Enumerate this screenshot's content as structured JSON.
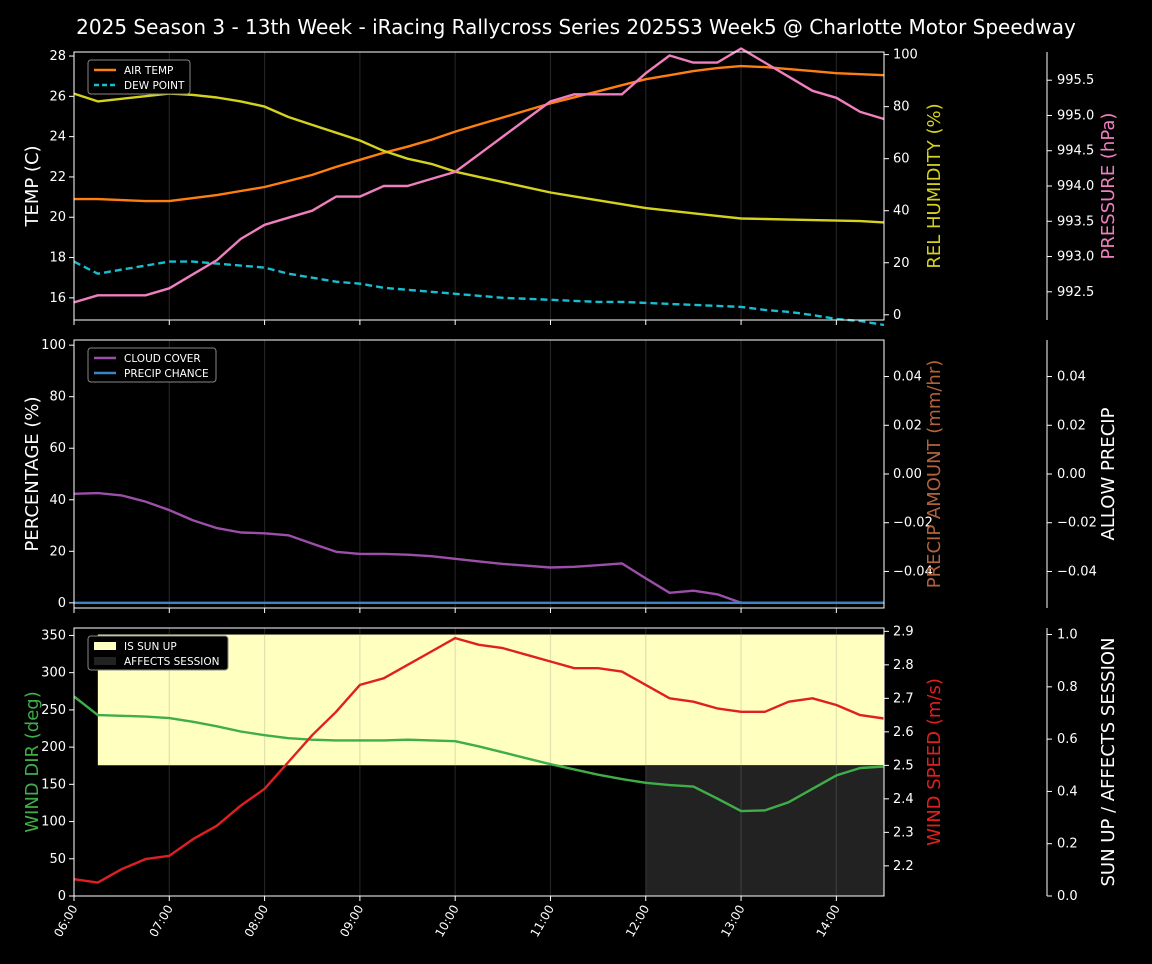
{
  "title": "2025 Season 3 - 13th Week - iRacing Rallycross Series 2025S3 Week5 @ Charlotte Motor Speedway",
  "colors": {
    "background": "#000000",
    "axis": "#ffffff",
    "grid": "#333333",
    "air_temp": "#ff7f0e",
    "dew_point": "#17becf",
    "humidity": "#d5d21e",
    "pressure": "#f07fbf",
    "cloud": "#9b4fa8",
    "precip_chance": "#3a84c9",
    "precip_amount": "#b0633a",
    "wind_dir": "#3fae49",
    "wind_speed": "#e02020",
    "sun_up": "#ffffc0",
    "affects_session": "#222222"
  },
  "x_ticks": [
    "06:00",
    "07:00",
    "08:00",
    "09:00",
    "10:00",
    "11:00",
    "12:00",
    "13:00",
    "14:00"
  ],
  "chart_data": [
    {
      "type": "line",
      "x_hours": [
        6.0,
        6.25,
        6.5,
        6.75,
        7.0,
        7.25,
        7.5,
        7.75,
        8.0,
        8.25,
        8.5,
        8.75,
        9.0,
        9.25,
        9.5,
        9.75,
        10.0,
        10.25,
        10.5,
        10.75,
        11.0,
        11.25,
        11.5,
        11.75,
        12.0,
        12.25,
        12.5,
        12.75,
        13.0,
        13.25,
        13.5,
        13.75,
        14.0,
        14.25,
        14.5
      ],
      "left_axis": {
        "label": "TEMP (C)",
        "ylim": [
          14.9,
          28.2
        ],
        "ticks": [
          "16",
          "18",
          "20",
          "22",
          "24",
          "26",
          "28"
        ]
      },
      "right_axis": {
        "label": "REL HUMIDITY (%)",
        "ylim": [
          -2,
          101
        ],
        "ticks": [
          "0",
          "20",
          "40",
          "60",
          "80",
          "100"
        ]
      },
      "far_axis": {
        "label": "PRESSURE (hPa)",
        "ylim": [
          992.1,
          995.9
        ],
        "ticks": [
          "992.5",
          "993.0",
          "993.5",
          "994.0",
          "994.5",
          "995.0",
          "995.5"
        ]
      },
      "legend": {
        "position": "top-left",
        "entries": [
          "AIR TEMP",
          "DEW POINT"
        ]
      },
      "series": [
        {
          "name": "AIR TEMP",
          "axis": "left",
          "values": [
            20.9,
            20.9,
            20.85,
            20.8,
            20.8,
            20.95,
            21.1,
            21.3,
            21.5,
            21.8,
            22.1,
            22.5,
            22.85,
            23.2,
            23.5,
            23.85,
            24.25,
            24.6,
            24.95,
            25.3,
            25.65,
            25.95,
            26.25,
            26.55,
            26.85,
            27.05,
            27.25,
            27.4,
            27.5,
            27.45,
            27.35,
            27.25,
            27.15,
            27.1,
            27.05
          ]
        },
        {
          "name": "DEW POINT",
          "axis": "left",
          "values": [
            17.8,
            17.2,
            17.4,
            17.6,
            17.8,
            17.8,
            17.7,
            17.6,
            17.5,
            17.2,
            17.0,
            16.8,
            16.7,
            16.5,
            16.4,
            16.3,
            16.2,
            16.1,
            16.0,
            15.95,
            15.9,
            15.85,
            15.8,
            15.8,
            15.75,
            15.7,
            15.65,
            15.6,
            15.55,
            15.4,
            15.3,
            15.15,
            14.95,
            14.85,
            14.65
          ]
        },
        {
          "name": "REL HUMIDITY",
          "axis": "right",
          "values": [
            85,
            82,
            83,
            84,
            85,
            84.5,
            83.5,
            82,
            80,
            76,
            73,
            70,
            67,
            63,
            60,
            58,
            55,
            53,
            51,
            49,
            47,
            45.5,
            44,
            42.5,
            41,
            40,
            39,
            38,
            37,
            36.8,
            36.6,
            36.4,
            36.2,
            36,
            35.5
          ]
        },
        {
          "name": "PRESSURE",
          "axis": "far",
          "values": [
            992.35,
            992.45,
            992.45,
            992.45,
            992.55,
            992.75,
            992.95,
            993.25,
            993.45,
            993.55,
            993.65,
            993.85,
            993.85,
            994.0,
            994.0,
            994.1,
            994.2,
            994.45,
            994.7,
            994.95,
            995.2,
            995.3,
            995.3,
            995.3,
            995.6,
            995.85,
            995.75,
            995.75,
            995.95,
            995.75,
            995.55,
            995.35,
            995.25,
            995.05,
            994.95
          ]
        }
      ]
    },
    {
      "type": "line",
      "x_hours": [
        6.0,
        6.25,
        6.5,
        6.75,
        7.0,
        7.25,
        7.5,
        7.75,
        8.0,
        8.25,
        8.5,
        8.75,
        9.0,
        9.25,
        9.5,
        9.75,
        10.0,
        10.25,
        10.5,
        10.75,
        11.0,
        11.25,
        11.5,
        11.75,
        12.0,
        12.25,
        12.5,
        12.75,
        13.0,
        13.25,
        13.5,
        13.75,
        14.0,
        14.25,
        14.5
      ],
      "left_axis": {
        "label": "PERCENTAGE (%)",
        "ylim": [
          -2,
          102
        ],
        "ticks": [
          "0",
          "20",
          "40",
          "60",
          "80",
          "100"
        ]
      },
      "right_axis": {
        "label": "PRECIP AMOUNT (mm/hr)",
        "ylim": [
          -0.055,
          0.055
        ],
        "ticks": [
          "−0.04",
          "−0.02",
          "0.00",
          "0.02",
          "0.04"
        ]
      },
      "far_axis": {
        "label": "ALLOW PRECIP",
        "ylim": [
          -0.055,
          0.055
        ],
        "ticks": [
          "−0.04",
          "−0.02",
          "0.00",
          "0.02",
          "0.04"
        ]
      },
      "legend": {
        "position": "top-left",
        "entries": [
          "CLOUD COVER",
          "PRECIP CHANCE"
        ]
      },
      "series": [
        {
          "name": "CLOUD COVER",
          "axis": "left",
          "values": [
            42.3,
            42.6,
            41.7,
            39.3,
            36.0,
            32.0,
            29.0,
            27.3,
            27.0,
            26.2,
            23.0,
            19.8,
            19.0,
            19.0,
            18.7,
            18.1,
            17.1,
            16.1,
            15.1,
            14.4,
            13.7,
            14.0,
            14.6,
            15.3,
            9.5,
            3.9,
            4.7,
            3.3,
            0,
            0,
            0,
            0,
            0,
            0,
            0
          ]
        },
        {
          "name": "PRECIP CHANCE",
          "axis": "left",
          "values": [
            0,
            0,
            0,
            0,
            0,
            0,
            0,
            0,
            0,
            0,
            0,
            0,
            0,
            0,
            0,
            0,
            0,
            0,
            0,
            0,
            0,
            0,
            0,
            0,
            0,
            0,
            0,
            0,
            0,
            0,
            0,
            0,
            0,
            0,
            0
          ]
        }
      ]
    },
    {
      "type": "line",
      "x_hours": [
        6.0,
        6.25,
        6.5,
        6.75,
        7.0,
        7.25,
        7.5,
        7.75,
        8.0,
        8.25,
        8.5,
        8.75,
        9.0,
        9.25,
        9.5,
        9.75,
        10.0,
        10.25,
        10.5,
        10.75,
        11.0,
        11.25,
        11.5,
        11.75,
        12.0,
        12.25,
        12.5,
        12.75,
        13.0,
        13.25,
        13.5,
        13.75,
        14.0,
        14.25,
        14.5
      ],
      "left_axis": {
        "label": "WIND DIR (deg)",
        "ylim": [
          0,
          360
        ],
        "ticks": [
          "0",
          "50",
          "100",
          "150",
          "200",
          "250",
          "300",
          "350"
        ]
      },
      "right_axis": {
        "label": "WIND SPEED (m/s)",
        "ylim": [
          2.11,
          2.91
        ],
        "ticks": [
          "2.2",
          "2.3",
          "2.4",
          "2.5",
          "2.6",
          "2.7",
          "2.8",
          "2.9"
        ]
      },
      "far_axis": {
        "label": "SUN UP / AFFECTS SESSION",
        "ylim": [
          0,
          1.025
        ],
        "ticks": [
          "0.0",
          "0.2",
          "0.4",
          "0.6",
          "0.8",
          "1.0"
        ]
      },
      "legend": {
        "position": "top-left",
        "entries": [
          "IS SUN UP",
          "AFFECTS SESSION"
        ]
      },
      "sun_up": {
        "from_hour": 6.25,
        "to_hour": 14.5,
        "value": 1
      },
      "affects_session": {
        "from_hour": 12.0,
        "to_hour": 14.5,
        "value": 1
      },
      "series": [
        {
          "name": "WIND DIR",
          "axis": "left",
          "values": [
            268,
            243,
            242,
            241,
            239,
            234,
            228,
            221,
            216,
            212,
            210,
            209,
            209,
            209,
            210,
            209,
            208,
            201,
            193,
            185,
            177,
            170,
            163,
            157,
            152,
            149,
            147,
            131,
            114,
            115,
            126,
            144,
            162,
            172,
            174
          ]
        },
        {
          "name": "WIND SPEED",
          "axis": "right",
          "values": [
            2.16,
            2.15,
            2.19,
            2.22,
            2.23,
            2.28,
            2.32,
            2.38,
            2.43,
            2.51,
            2.59,
            2.66,
            2.74,
            2.76,
            2.8,
            2.84,
            2.88,
            2.86,
            2.85,
            2.83,
            2.81,
            2.79,
            2.79,
            2.78,
            2.74,
            2.7,
            2.69,
            2.67,
            2.66,
            2.66,
            2.69,
            2.7,
            2.68,
            2.65,
            2.64
          ]
        }
      ]
    }
  ]
}
